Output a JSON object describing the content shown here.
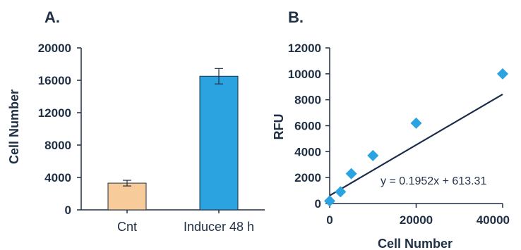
{
  "chart_data": [
    {
      "panel_label": "A.",
      "type": "bar",
      "categories": [
        "Cnt",
        "Inducer 48 h"
      ],
      "values": [
        3300,
        16500
      ],
      "errors": [
        350,
        950
      ],
      "colors": [
        "#f8cc9a",
        "#2aa3e0"
      ],
      "title": "",
      "xlabel": "",
      "ylabel": "Cell Number",
      "ylim": [
        0,
        20000
      ],
      "yticks": [
        "0",
        "4000",
        "8000",
        "12000",
        "16000",
        "20000"
      ],
      "grid": false
    },
    {
      "panel_label": "B.",
      "type": "scatter",
      "points": [
        {
          "x": 0,
          "y": 200
        },
        {
          "x": 2500,
          "y": 900
        },
        {
          "x": 5000,
          "y": 2300
        },
        {
          "x": 10000,
          "y": 3700
        },
        {
          "x": 20000,
          "y": 6200
        },
        {
          "x": 40000,
          "y": 10000
        }
      ],
      "marker_color": "#2aa3e0",
      "trendline": {
        "slope": 0.1952,
        "intercept": 613.31,
        "x_range": [
          0,
          40000
        ],
        "color": "#1c2b4a"
      },
      "equation": "y = 0.1952x + 613.31",
      "title": "",
      "xlabel": "Cell Number",
      "ylabel": "RFU",
      "xlim": [
        0,
        40000
      ],
      "ylim": [
        0,
        12000
      ],
      "xticks": [
        "0",
        "20000",
        "40000"
      ],
      "yticks": [
        "0",
        "2000",
        "4000",
        "6000",
        "8000",
        "10000",
        "12000"
      ],
      "grid": false
    }
  ]
}
